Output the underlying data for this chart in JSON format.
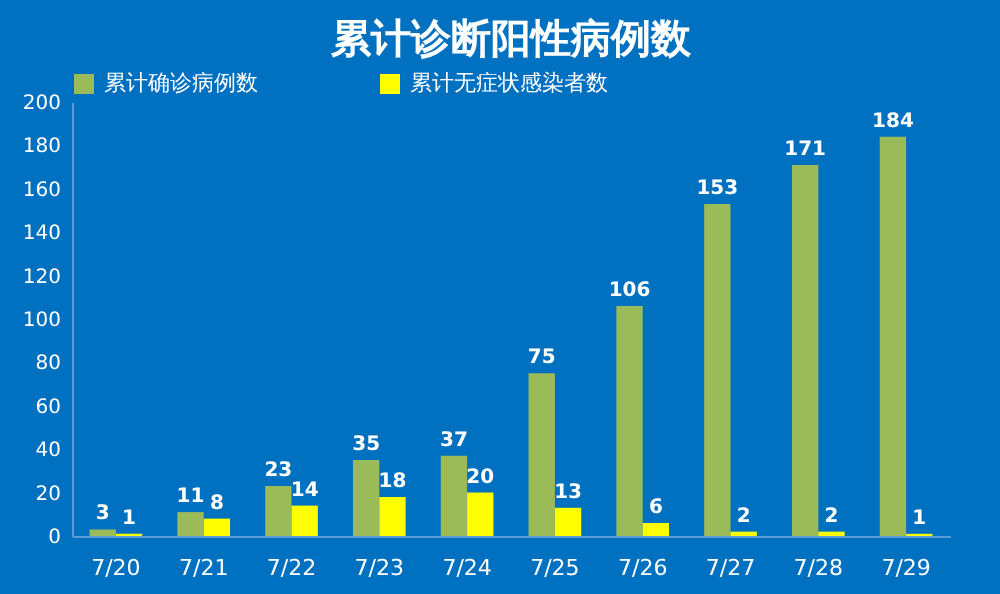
{
  "chart_data": {
    "type": "bar",
    "title": "累计诊断阳性病例数",
    "categories": [
      "7/20",
      "7/21",
      "7/22",
      "7/23",
      "7/24",
      "7/25",
      "7/26",
      "7/27",
      "7/28",
      "7/29"
    ],
    "series": [
      {
        "name": "累计确诊病例数",
        "color": "#9bbb59",
        "values": [
          3,
          11,
          23,
          35,
          37,
          75,
          106,
          153,
          171,
          184
        ]
      },
      {
        "name": "累计无症状感染者数",
        "color": "#ffff00",
        "values": [
          1,
          8,
          14,
          18,
          20,
          13,
          6,
          2,
          2,
          1
        ]
      }
    ],
    "ylim": [
      0,
      200
    ],
    "yticks": [
      0,
      20,
      40,
      60,
      80,
      100,
      120,
      140,
      160,
      180,
      200
    ],
    "grid": false,
    "legend": "top",
    "data_labels": true
  }
}
